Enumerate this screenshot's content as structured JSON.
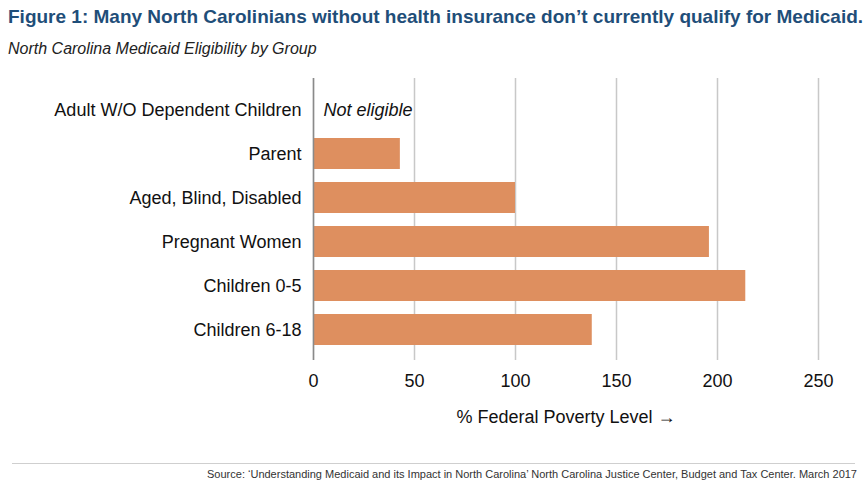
{
  "chart_data": {
    "type": "bar",
    "orientation": "horizontal",
    "title": "Figure 1: Many North Carolinians without health insurance don’t currently qualify for Medicaid.",
    "subtitle": "North Carolina Medicaid Eligibility by Group",
    "x_label": "% Federal Poverty Level",
    "categories": [
      "Adult W/O Dependent Children",
      "Parent",
      "Aged, Blind, Disabled",
      "Pregnant Women",
      "Children 0-5",
      "Children 6-18"
    ],
    "values": [
      null,
      43,
      100,
      196,
      214,
      138
    ],
    "color": "#de8f5f",
    "xlim": [
      0,
      250
    ],
    "xticks": [
      0,
      50,
      100,
      150,
      200,
      250
    ],
    "grid": true,
    "annotations": [
      {
        "text": "Not eligible",
        "category": "Adult W/O Dependent Children"
      }
    ],
    "source": "Source: ‘Understanding Medicaid and its Impact in North Carolina’ North Carolina Justice Center, Budget and Tax Center. March 2017"
  }
}
